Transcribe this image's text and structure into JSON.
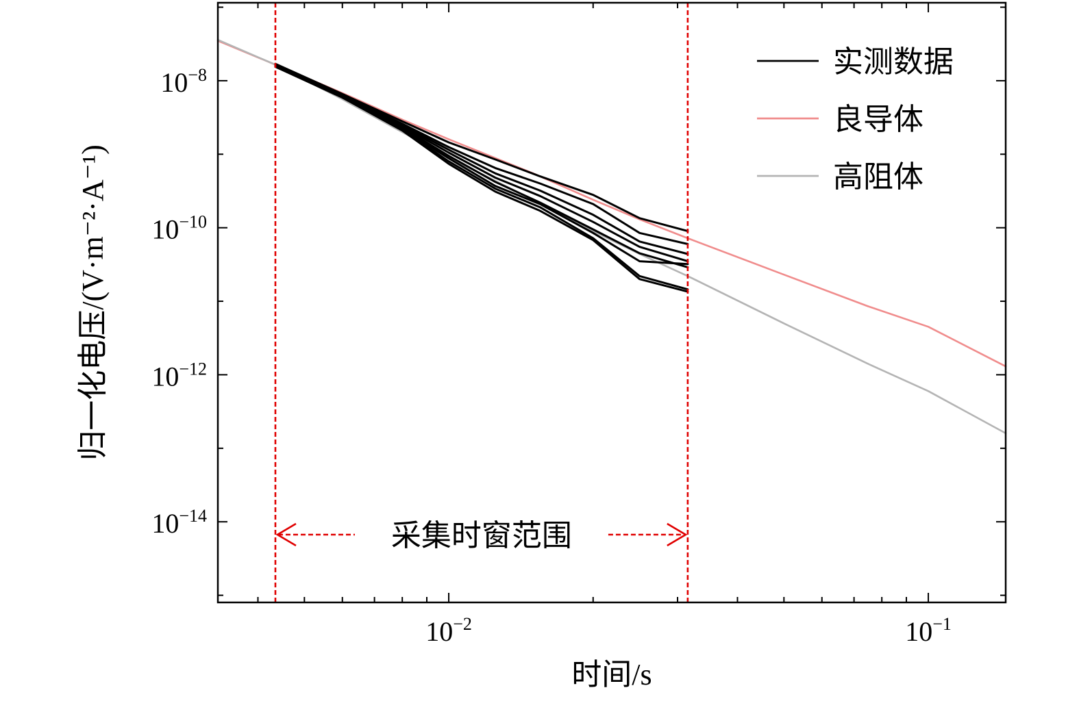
{
  "chart_data": {
    "type": "line",
    "scale": {
      "x": "log",
      "y": "log"
    },
    "xlim": [
      0.0033,
      0.145
    ],
    "ylim": [
      8e-16,
      1.15e-07
    ],
    "xlabel": "时间/s",
    "ylabel": "归一化电压/(V·m⁻²·A⁻¹)",
    "x_ticks": [
      {
        "value": 0.01,
        "base": "10",
        "exp": "−2"
      },
      {
        "value": 0.1,
        "base": "10",
        "exp": "−1"
      }
    ],
    "y_ticks": [
      {
        "value": 1e-08,
        "base": "10",
        "exp": "−8"
      },
      {
        "value": 1e-10,
        "base": "10",
        "exp": "−10"
      },
      {
        "value": 1e-12,
        "base": "10",
        "exp": "−12"
      },
      {
        "value": 1e-14,
        "base": "10",
        "exp": "−14"
      }
    ],
    "legend": {
      "position": "top-right",
      "entries": [
        {
          "label": "实测数据",
          "color": "#000000"
        },
        {
          "label": "良导体",
          "color": "#f08c8c"
        },
        {
          "label": "高阻体",
          "color": "#b4b4b4"
        }
      ]
    },
    "window": {
      "start": 0.00435,
      "end": 0.0315,
      "label": "采集时窗范围",
      "color": "#e00000"
    },
    "series": [
      {
        "name": "良导体",
        "color": "#f08c8c",
        "x": [
          0.0033,
          0.00435,
          0.006,
          0.008,
          0.01,
          0.015,
          0.02,
          0.025,
          0.0315,
          0.05,
          0.075,
          0.1,
          0.145
        ],
        "y": [
          3.5e-08,
          1.65e-08,
          6.8e-09,
          2.95e-09,
          1.6e-09,
          5.5e-10,
          2.4e-10,
          1.3e-10,
          7.2e-11,
          2.3e-11,
          8.5e-12,
          4.5e-12,
          1.3e-12
        ]
      },
      {
        "name": "高阻体",
        "color": "#b4b4b4",
        "x": [
          0.0033,
          0.00435,
          0.006,
          0.008,
          0.01,
          0.015,
          0.02,
          0.025,
          0.0315,
          0.05,
          0.075,
          0.1,
          0.145
        ],
        "y": [
          3.6e-08,
          1.65e-08,
          5.6e-09,
          2e-09,
          9e-10,
          2.4e-10,
          9e-11,
          4.4e-11,
          2.2e-11,
          5e-12,
          1.4e-12,
          6e-13,
          1.6e-13
        ]
      },
      {
        "color": "#000000",
        "x": [
          0.00435,
          0.006,
          0.008,
          0.01,
          0.0125,
          0.0155,
          0.02,
          0.025,
          0.0315
        ],
        "y": [
          1.7e-08,
          6.6e-09,
          2.8e-09,
          1.45e-09,
          8.5e-10,
          5e-10,
          2.8e-10,
          1.35e-10,
          9e-11
        ]
      },
      {
        "color": "#000000",
        "x": [
          0.00435,
          0.006,
          0.008,
          0.01,
          0.0125,
          0.0155,
          0.02,
          0.025,
          0.0315
        ],
        "y": [
          1.65e-08,
          6.4e-09,
          2.6e-09,
          1.25e-09,
          6.5e-10,
          4e-10,
          2.1e-10,
          8.5e-11,
          6e-11
        ]
      },
      {
        "color": "#000000",
        "x": [
          0.00435,
          0.006,
          0.008,
          0.01,
          0.0125,
          0.0155,
          0.02,
          0.025,
          0.0315
        ],
        "y": [
          1.65e-08,
          6.3e-09,
          2.5e-09,
          1.15e-09,
          5.5e-10,
          3.2e-10,
          1.5e-10,
          6.5e-11,
          4.4e-11
        ]
      },
      {
        "color": "#000000",
        "x": [
          0.00435,
          0.006,
          0.008,
          0.01,
          0.0125,
          0.0155,
          0.02,
          0.025,
          0.0315
        ],
        "y": [
          1.6e-08,
          6.2e-09,
          2.4e-09,
          1.05e-09,
          4.8e-10,
          2.7e-10,
          1.2e-10,
          5.5e-11,
          3.5e-11
        ]
      },
      {
        "color": "#000000",
        "x": [
          0.00435,
          0.006,
          0.008,
          0.01,
          0.0125,
          0.0155,
          0.02,
          0.025,
          0.0315
        ],
        "y": [
          1.6e-08,
          6.1e-09,
          2.3e-09,
          9.5e-10,
          4.2e-10,
          2.2e-10,
          9.5e-11,
          4.5e-11,
          2.9e-11
        ]
      },
      {
        "color": "#000000",
        "x": [
          0.00435,
          0.006,
          0.008,
          0.01,
          0.0125,
          0.0155,
          0.02,
          0.025,
          0.0315
        ],
        "y": [
          1.6e-08,
          6e-09,
          2.2e-09,
          8.8e-10,
          3.7e-10,
          2.1e-10,
          8.5e-11,
          3.5e-11,
          3.2e-11
        ]
      },
      {
        "color": "#000000",
        "x": [
          0.00435,
          0.006,
          0.008,
          0.01,
          0.0125,
          0.0155,
          0.02,
          0.025,
          0.0315
        ],
        "y": [
          1.55e-08,
          6e-09,
          2.15e-09,
          8e-10,
          3.4e-10,
          1.9e-10,
          7.2e-11,
          2.2e-11,
          1.45e-11
        ]
      },
      {
        "color": "#000000",
        "x": [
          0.00435,
          0.006,
          0.008,
          0.01,
          0.0125,
          0.0155,
          0.02,
          0.025,
          0.0315
        ],
        "y": [
          1.55e-08,
          5.9e-09,
          2.1e-09,
          7.4e-10,
          3.1e-10,
          1.7e-10,
          6.8e-11,
          2e-11,
          1.35e-11
        ]
      }
    ]
  }
}
